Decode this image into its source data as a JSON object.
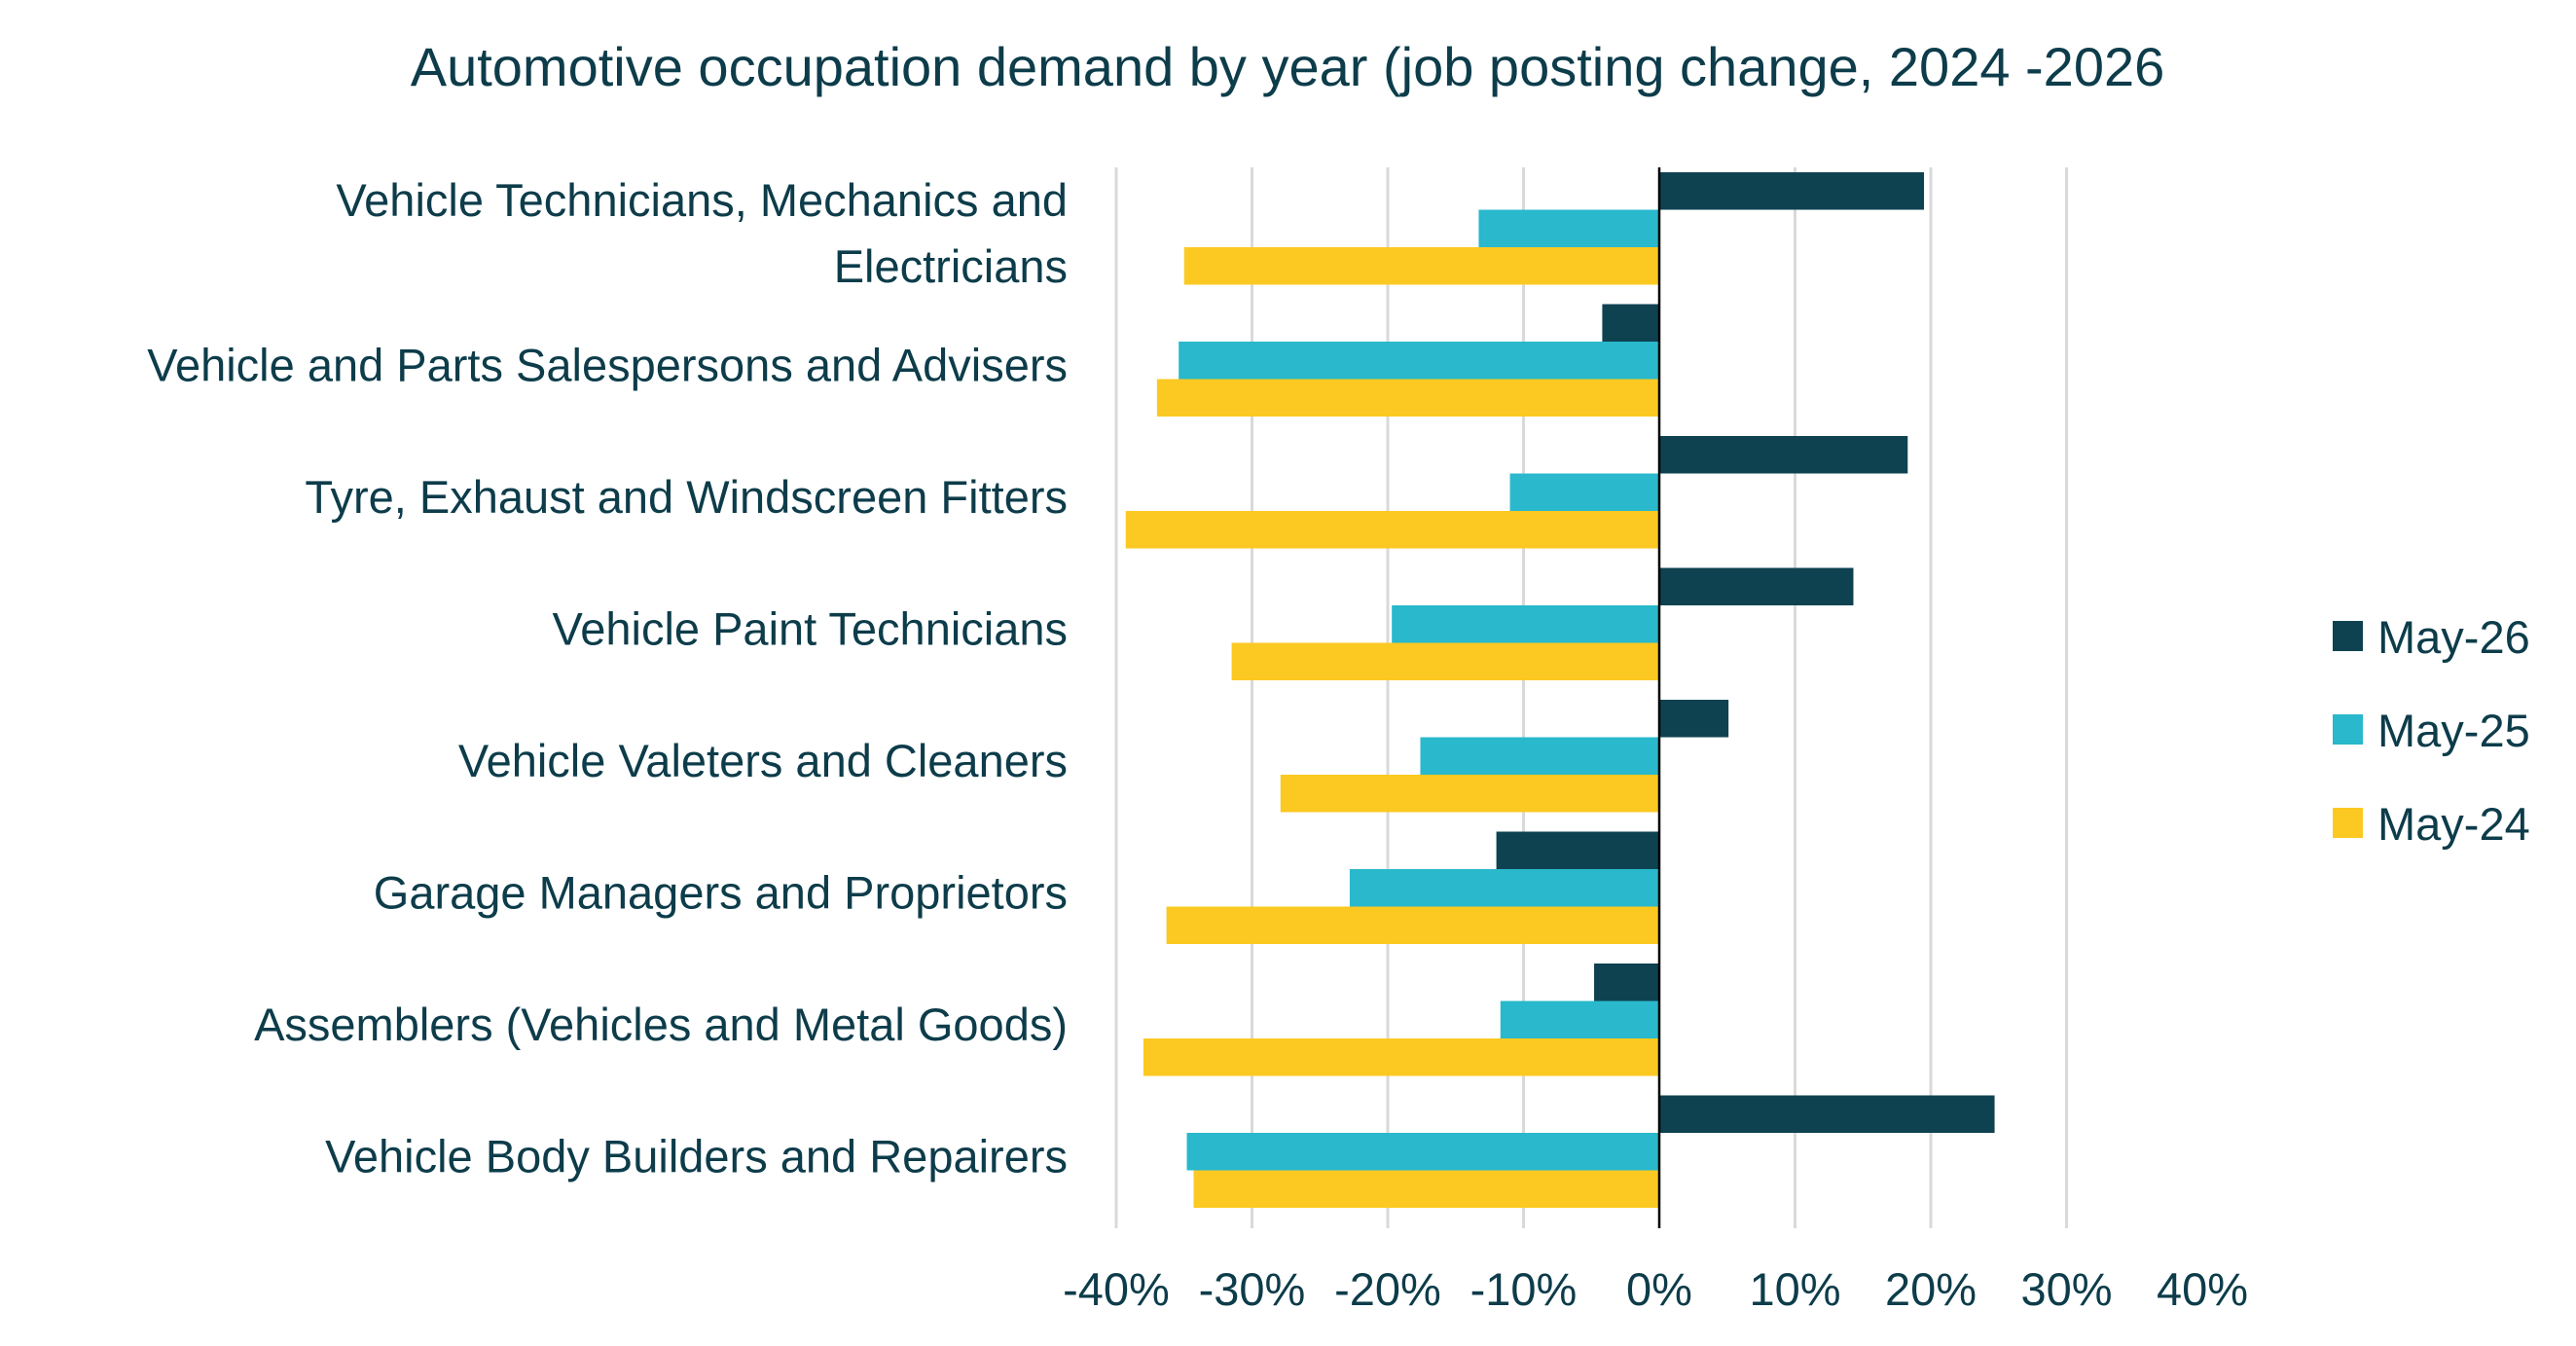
{
  "chart_data": {
    "type": "bar",
    "orientation": "horizontal",
    "title": "Automotive occupation demand by year (job posting change, 2024 -2026",
    "xlabel": "",
    "ylabel": "",
    "xlim": [
      -0.4,
      0.4
    ],
    "x_ticks": [
      -0.4,
      -0.3,
      -0.2,
      -0.1,
      0,
      0.1,
      0.2,
      0.3,
      0.4
    ],
    "x_tick_labels": [
      "-40%",
      "-30%",
      "-20%",
      "-10%",
      "0%",
      "10%",
      "20%",
      "30%",
      "40%"
    ],
    "grid": "vertical",
    "legend_position": "right",
    "categories": [
      [
        "Vehicle Technicians, Mechanics and",
        "Electricians"
      ],
      [
        "Vehicle and Parts Salespersons and Advisers"
      ],
      [
        "Tyre, Exhaust and Windscreen Fitters"
      ],
      [
        "Vehicle Paint Technicians"
      ],
      [
        "Vehicle Valeters and Cleaners"
      ],
      [
        "Garage Managers and Proprietors"
      ],
      [
        "Assemblers (Vehicles and Metal Goods)"
      ],
      [
        "Vehicle Body Builders and Repairers"
      ]
    ],
    "series": [
      {
        "name": "May-26",
        "color": "#0e4250",
        "values": [
          0.195,
          -0.042,
          0.183,
          0.143,
          0.051,
          -0.12,
          -0.048,
          0.247
        ]
      },
      {
        "name": "May-25",
        "color": "#29b8cc",
        "values": [
          -0.133,
          -0.354,
          -0.11,
          -0.197,
          -0.176,
          -0.228,
          -0.117,
          -0.348
        ]
      },
      {
        "name": "May-24",
        "color": "#fbc921",
        "values": [
          -0.35,
          -0.37,
          -0.393,
          -0.315,
          -0.279,
          -0.363,
          -0.38,
          -0.343
        ]
      }
    ]
  }
}
